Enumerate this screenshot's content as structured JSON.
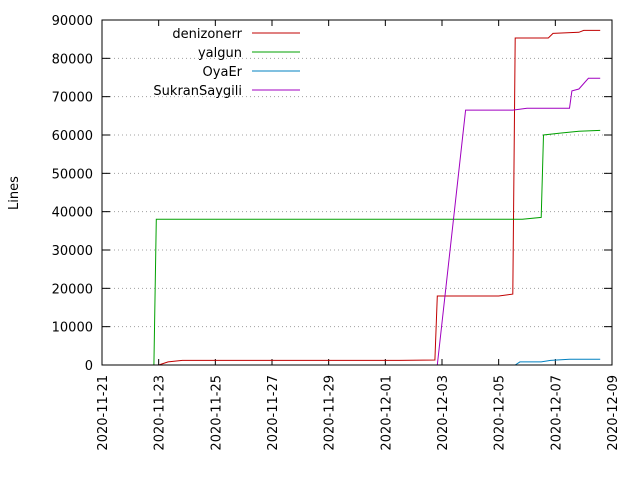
{
  "chart_data": {
    "type": "line",
    "title": "",
    "xlabel": "",
    "ylabel": "Lines",
    "xlim": [
      "2020-11-21",
      "2020-12-09"
    ],
    "ylim": [
      0,
      90000
    ],
    "grid": true,
    "legend_position": "top-left",
    "x_ticks": [
      "2020-11-21",
      "2020-11-23",
      "2020-11-25",
      "2020-11-27",
      "2020-11-29",
      "2020-12-01",
      "2020-12-03",
      "2020-12-05",
      "2020-12-07",
      "2020-12-09"
    ],
    "y_ticks": [
      "0",
      "10000",
      "20000",
      "30000",
      "40000",
      "50000",
      "60000",
      "70000",
      "80000",
      "90000"
    ],
    "series": [
      {
        "name": "denizonerr",
        "color": "#c00000",
        "points": [
          [
            "2020-11-23 00:00",
            0
          ],
          [
            "2020-11-23 08:00",
            800
          ],
          [
            "2020-11-23 20:00",
            1200
          ],
          [
            "2020-12-01 12:00",
            1200
          ],
          [
            "2020-12-02 18:00",
            1300
          ],
          [
            "2020-12-02 20:00",
            18000
          ],
          [
            "2020-12-05 00:00",
            18000
          ],
          [
            "2020-12-05 12:00",
            18500
          ],
          [
            "2020-12-05 14:00",
            85300
          ],
          [
            "2020-12-06 18:00",
            85300
          ],
          [
            "2020-12-06 22:00",
            86500
          ],
          [
            "2020-12-07 20:00",
            86800
          ],
          [
            "2020-12-08 00:00",
            87300
          ],
          [
            "2020-12-08 14:00",
            87300
          ]
        ]
      },
      {
        "name": "yalgun",
        "color": "#00a000",
        "points": [
          [
            "2020-11-22 20:00",
            0
          ],
          [
            "2020-11-22 22:00",
            38000
          ],
          [
            "2020-12-05 20:00",
            38000
          ],
          [
            "2020-12-06 12:00",
            38500
          ],
          [
            "2020-12-06 14:00",
            60000
          ],
          [
            "2020-12-07 04:00",
            60500
          ],
          [
            "2020-12-07 20:00",
            61000
          ],
          [
            "2020-12-08 14:00",
            61200
          ]
        ]
      },
      {
        "name": "OyaEr",
        "color": "#0080c0",
        "points": [
          [
            "2020-12-05 14:00",
            0
          ],
          [
            "2020-12-05 18:00",
            800
          ],
          [
            "2020-12-06 12:00",
            800
          ],
          [
            "2020-12-06 20:00",
            1200
          ],
          [
            "2020-12-07 12:00",
            1500
          ],
          [
            "2020-12-08 14:00",
            1500
          ]
        ]
      },
      {
        "name": "SukranSaygili",
        "color": "#a000c0",
        "points": [
          [
            "2020-12-02 20:00",
            0
          ],
          [
            "2020-12-03 20:00",
            66500
          ],
          [
            "2020-12-05 12:00",
            66500
          ],
          [
            "2020-12-06 00:00",
            67000
          ],
          [
            "2020-12-07 12:00",
            67000
          ],
          [
            "2020-12-07 14:00",
            71500
          ],
          [
            "2020-12-07 20:00",
            72000
          ],
          [
            "2020-12-08 04:00",
            74800
          ],
          [
            "2020-12-08 14:00",
            74800
          ]
        ]
      }
    ]
  }
}
